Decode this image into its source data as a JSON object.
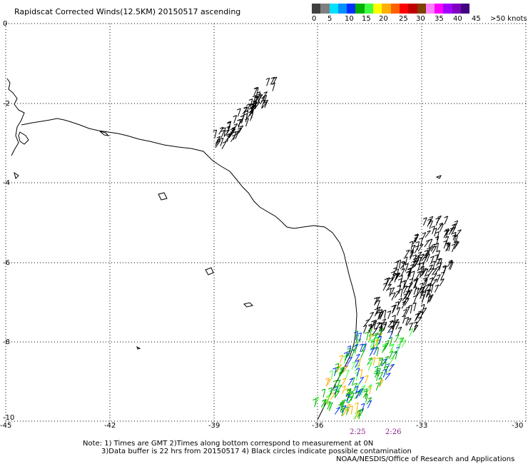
{
  "title": "Rapidscat Corrected Winds(12.5KM) 20150517 ascending",
  "legend": {
    "colors": [
      "#404040",
      "#7f7f7f",
      "#00e0ff",
      "#0090ff",
      "#0030ff",
      "#00b000",
      "#40ff40",
      "#ffff00",
      "#ffb000",
      "#ff6000",
      "#ff0000",
      "#c00000",
      "#804000",
      "#ff80ff",
      "#ff00ff",
      "#a000ff",
      "#8000c0",
      "#400080"
    ],
    "labels": [
      "0",
      "5",
      "10",
      "15",
      "20",
      "25",
      "30",
      "35",
      "40",
      "45",
      ">50 knots"
    ]
  },
  "axes": {
    "y_labels": [
      "0",
      "-2",
      "-4",
      "-6",
      "-8",
      "-10"
    ],
    "x_labels": [
      "-45",
      "-42",
      "-39",
      "-36",
      "-33",
      "-30"
    ]
  },
  "times": [
    "2:25",
    "2:26"
  ],
  "notes": {
    "line1": "Note: 1) Times are GMT 2)Times along bottom correspond to measurement at 0N",
    "line2": "3)Data buffer is 22 hrs from 20150517 4) Black circles indicate possible contamination",
    "line3": "NOAA/NESDIS/Office of Research and Applications"
  }
}
